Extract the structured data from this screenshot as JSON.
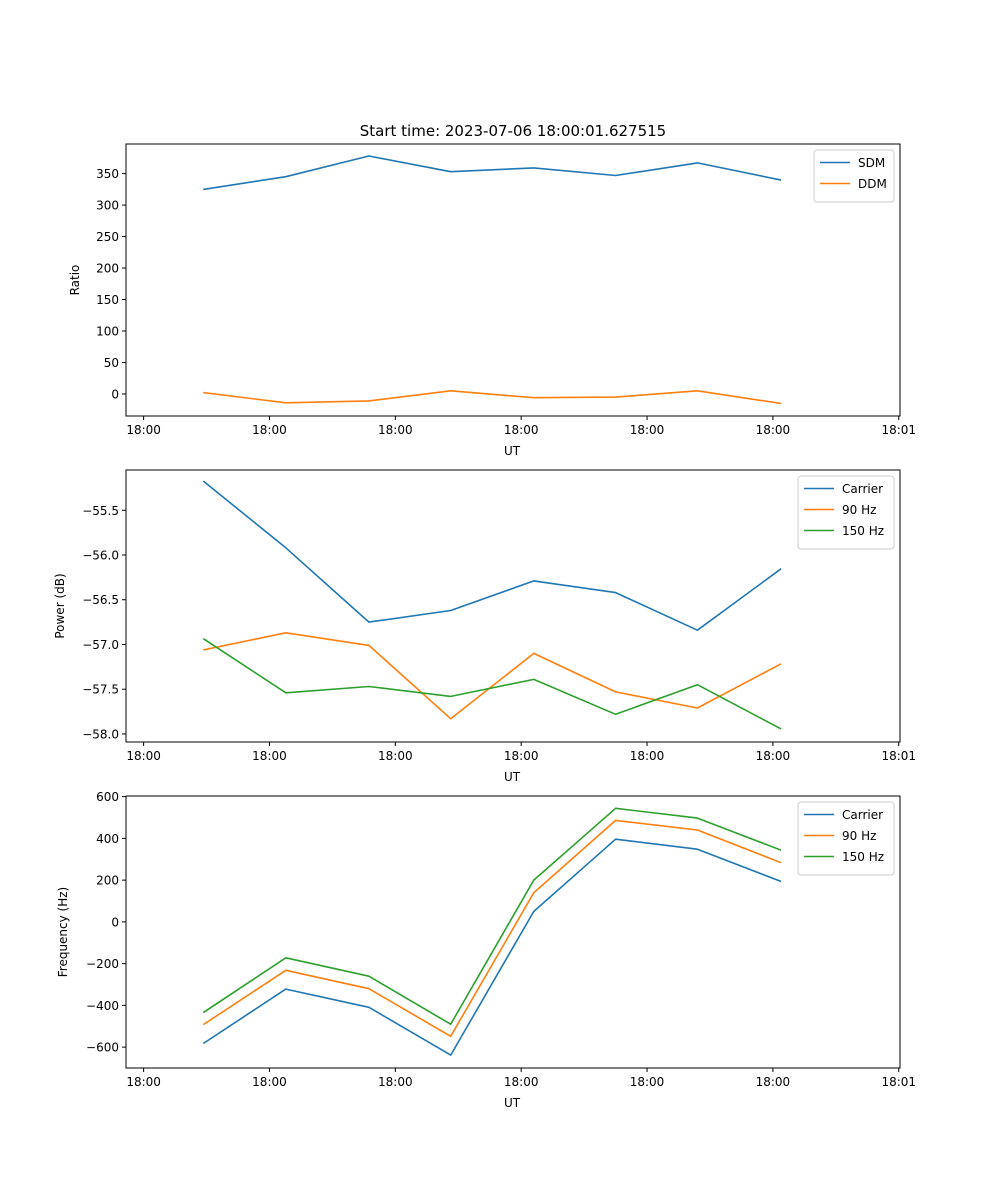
{
  "figure": {
    "suptitle": "Start time: 2023-07-06 18:00:01.627515"
  },
  "chart_data": [
    {
      "type": "line",
      "title": "Start time: 2023-07-06 18:00:01.627515",
      "xlabel": "UT",
      "ylabel": "Ratio",
      "x_unit": "seconds after 18:00:00",
      "x": [
        4.8,
        11.3,
        17.9,
        24.4,
        31.0,
        37.5,
        44.0,
        50.6
      ],
      "xlim": [
        -1.4,
        60.1
      ],
      "xticks": [
        0,
        10,
        20,
        30,
        40,
        50,
        60
      ],
      "xtick_labels": [
        "18:00",
        "18:00",
        "18:00",
        "18:00",
        "18:00",
        "18:00",
        "18:01"
      ],
      "ylim": [
        -35,
        397
      ],
      "yticks": [
        0,
        50,
        100,
        150,
        200,
        250,
        300,
        350
      ],
      "ytick_labels": [
        "0",
        "50",
        "100",
        "150",
        "200",
        "250",
        "300",
        "350"
      ],
      "grid": false,
      "legend": "top-right",
      "series": [
        {
          "name": "SDM",
          "color": "#1f77b4",
          "values": [
            325,
            345,
            378,
            353,
            359,
            347,
            367,
            340
          ]
        },
        {
          "name": "DDM",
          "color": "#ff7f0e",
          "values": [
            2,
            -14,
            -11,
            5,
            -6,
            -5,
            5,
            -15
          ]
        }
      ]
    },
    {
      "type": "line",
      "title": "",
      "xlabel": "UT",
      "ylabel": "Power (dB)",
      "x_unit": "seconds after 18:00:00",
      "x": [
        4.8,
        11.3,
        17.9,
        24.4,
        31.0,
        37.5,
        44.0,
        50.6
      ],
      "xlim": [
        -1.4,
        60.1
      ],
      "xticks": [
        0,
        10,
        20,
        30,
        40,
        50,
        60
      ],
      "xtick_labels": [
        "18:00",
        "18:00",
        "18:00",
        "18:00",
        "18:00",
        "18:00",
        "18:01"
      ],
      "ylim": [
        -58.09,
        -55.05
      ],
      "yticks": [
        -58.0,
        -57.5,
        -57.0,
        -56.5,
        -56.0,
        -55.5
      ],
      "ytick_labels": [
        "−58.0",
        "−57.5",
        "−57.0",
        "−56.5",
        "−56.0",
        "−55.5"
      ],
      "grid": false,
      "legend": "top-right",
      "series": [
        {
          "name": "Carrier",
          "color": "#1f77b4",
          "values": [
            -55.18,
            -55.92,
            -56.75,
            -56.62,
            -56.29,
            -56.42,
            -56.84,
            -56.16
          ]
        },
        {
          "name": "90 Hz",
          "color": "#ff7f0e",
          "values": [
            -57.06,
            -56.87,
            -57.01,
            -57.83,
            -57.1,
            -57.53,
            -57.71,
            -57.22
          ]
        },
        {
          "name": "150 Hz",
          "color": "#2ca02c",
          "values": [
            -56.94,
            -57.54,
            -57.47,
            -57.58,
            -57.39,
            -57.78,
            -57.45,
            -57.94
          ]
        }
      ]
    },
    {
      "type": "line",
      "title": "",
      "xlabel": "UT",
      "ylabel": "Frequency (Hz)",
      "x_unit": "seconds after 18:00:00",
      "x": [
        4.8,
        11.3,
        17.9,
        24.4,
        31.0,
        37.5,
        44.0,
        50.6
      ],
      "xlim": [
        -1.4,
        60.1
      ],
      "xticks": [
        0,
        10,
        20,
        30,
        40,
        50,
        60
      ],
      "xtick_labels": [
        "18:00",
        "18:00",
        "18:00",
        "18:00",
        "18:00",
        "18:00",
        "18:01"
      ],
      "ylim": [
        -700,
        603
      ],
      "yticks": [
        -600,
        -400,
        -200,
        0,
        200,
        400,
        600
      ],
      "ytick_labels": [
        "−600",
        "−400",
        "−200",
        "0",
        "200",
        "400",
        "600"
      ],
      "grid": false,
      "legend": "top-right",
      "series": [
        {
          "name": "Carrier",
          "color": "#1f77b4",
          "values": [
            -580,
            -322,
            -409,
            -638,
            50,
            396,
            348,
            195
          ]
        },
        {
          "name": "90 Hz",
          "color": "#ff7f0e",
          "values": [
            -490,
            -232,
            -320,
            -548,
            140,
            486,
            440,
            285
          ]
        },
        {
          "name": "150 Hz",
          "color": "#2ca02c",
          "values": [
            -432,
            -172,
            -260,
            -490,
            200,
            544,
            497,
            345
          ]
        }
      ]
    }
  ]
}
